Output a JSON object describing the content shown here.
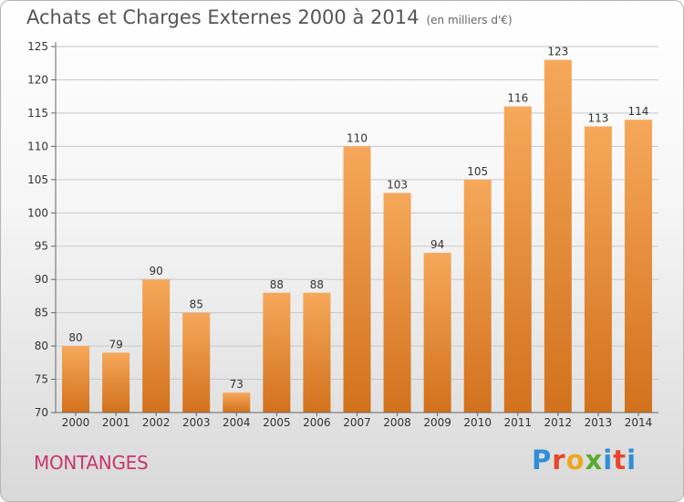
{
  "header": {
    "title": "Achats et Charges Externes 2000 à 2014",
    "subtitle": "(en milliers d'€)"
  },
  "commune": "MONTANGES",
  "logo": {
    "text": "Proxiti",
    "letters": [
      "P",
      "r",
      "o",
      "x",
      "i",
      "t",
      "i"
    ],
    "colors": [
      "#2e8fd6",
      "#e8462a",
      "#f0a81e",
      "#5aab2e",
      "#2e8fd6",
      "#e8462a",
      "#2e8fd6"
    ]
  },
  "colors": {
    "bar_top": "#f6a85a",
    "bar_bottom": "#d2711c",
    "axis": "#666666",
    "grid": "#c8c8c8"
  },
  "chart_data": {
    "type": "bar",
    "categories": [
      "2000",
      "2001",
      "2002",
      "2003",
      "2004",
      "2005",
      "2006",
      "2007",
      "2008",
      "2009",
      "2010",
      "2011",
      "2012",
      "2013",
      "2014"
    ],
    "values": [
      80,
      79,
      90,
      85,
      73,
      88,
      88,
      110,
      103,
      94,
      105,
      116,
      123,
      113,
      114
    ],
    "ylim": [
      70,
      125
    ],
    "yticks": [
      70,
      75,
      80,
      85,
      90,
      95,
      100,
      105,
      110,
      115,
      120,
      125
    ],
    "grid": true,
    "legend": "none"
  }
}
